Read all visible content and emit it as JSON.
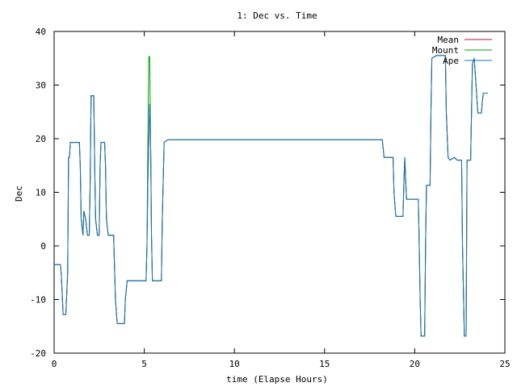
{
  "chart_data": {
    "type": "line",
    "title": "1: Dec vs. Time",
    "xlabel": "time (Elapse Hours)",
    "ylabel": "Dec",
    "xlim": [
      0,
      25
    ],
    "ylim": [
      -20,
      40
    ],
    "xticks": [
      0,
      5,
      10,
      15,
      20,
      25
    ],
    "yticks": [
      -20,
      -10,
      0,
      10,
      20,
      30,
      40
    ],
    "grid": false,
    "legend_position": "top-right",
    "series": [
      {
        "name": "Mean",
        "color": "#aa1144",
        "points": [
          [
            0.0,
            -3.5
          ],
          [
            0.35,
            -3.5
          ],
          [
            0.4,
            -5.5
          ],
          [
            0.5,
            -12.8
          ],
          [
            0.65,
            -12.8
          ],
          [
            0.75,
            -5
          ],
          [
            0.8,
            16.5
          ],
          [
            0.85,
            16.5
          ],
          [
            0.9,
            19.3
          ],
          [
            1.4,
            19.3
          ],
          [
            1.45,
            15
          ],
          [
            1.5,
            5
          ],
          [
            1.6,
            2
          ],
          [
            1.65,
            6.5
          ],
          [
            1.75,
            5
          ],
          [
            1.85,
            2
          ],
          [
            1.95,
            2
          ],
          [
            2.0,
            12
          ],
          [
            2.05,
            28
          ],
          [
            2.2,
            28
          ],
          [
            2.25,
            15
          ],
          [
            2.3,
            5
          ],
          [
            2.4,
            2
          ],
          [
            2.5,
            2
          ],
          [
            2.55,
            15
          ],
          [
            2.6,
            19.3
          ],
          [
            2.8,
            19.3
          ],
          [
            2.85,
            15
          ],
          [
            2.9,
            5
          ],
          [
            3.0,
            2
          ],
          [
            3.3,
            2
          ],
          [
            3.4,
            -10
          ],
          [
            3.5,
            -14.5
          ],
          [
            3.9,
            -14.5
          ],
          [
            3.95,
            -10
          ],
          [
            4.05,
            -6.5
          ],
          [
            5.0,
            -6.5
          ],
          [
            5.1,
            -6.5
          ],
          [
            5.15,
            0
          ],
          [
            5.2,
            12
          ],
          [
            5.3,
            26.5
          ],
          [
            5.35,
            20
          ],
          [
            5.4,
            2
          ],
          [
            5.45,
            -6.5
          ],
          [
            5.95,
            -6.5
          ],
          [
            6.0,
            5
          ],
          [
            6.1,
            19.3
          ],
          [
            6.3,
            19.8
          ],
          [
            18.2,
            19.8
          ],
          [
            18.3,
            16.5
          ],
          [
            18.8,
            16.5
          ],
          [
            18.85,
            10
          ],
          [
            18.95,
            5.5
          ],
          [
            19.35,
            5.5
          ],
          [
            19.4,
            12
          ],
          [
            19.45,
            16.5
          ],
          [
            19.5,
            12
          ],
          [
            19.55,
            8.7
          ],
          [
            20.2,
            8.7
          ],
          [
            20.25,
            0
          ],
          [
            20.3,
            -10
          ],
          [
            20.35,
            -16.8
          ],
          [
            20.55,
            -16.8
          ],
          [
            20.6,
            0
          ],
          [
            20.65,
            11.3
          ],
          [
            20.85,
            11.3
          ],
          [
            20.9,
            25
          ],
          [
            20.95,
            35
          ],
          [
            21.2,
            35.5
          ],
          [
            21.7,
            35.5
          ],
          [
            21.75,
            25
          ],
          [
            21.85,
            16.5
          ],
          [
            21.95,
            16
          ],
          [
            22.2,
            16.5
          ],
          [
            22.35,
            16
          ],
          [
            22.6,
            16
          ],
          [
            22.65,
            0
          ],
          [
            22.75,
            -16.8
          ],
          [
            22.85,
            -16.8
          ],
          [
            22.9,
            16
          ],
          [
            23.1,
            16
          ],
          [
            23.2,
            34
          ],
          [
            23.3,
            35
          ],
          [
            23.4,
            30
          ],
          [
            23.5,
            24.8
          ],
          [
            23.7,
            24.8
          ],
          [
            23.75,
            27
          ],
          [
            23.8,
            28.5
          ],
          [
            24.05,
            28.5
          ]
        ]
      },
      {
        "name": "Mount",
        "color": "#00a000",
        "points": [
          [
            0.0,
            -3.5
          ],
          [
            0.35,
            -3.5
          ],
          [
            0.4,
            -5.5
          ],
          [
            0.5,
            -12.8
          ],
          [
            0.65,
            -12.8
          ],
          [
            0.75,
            -5
          ],
          [
            0.8,
            16.5
          ],
          [
            0.85,
            16.5
          ],
          [
            0.9,
            19.3
          ],
          [
            1.4,
            19.3
          ],
          [
            1.45,
            15
          ],
          [
            1.5,
            5
          ],
          [
            1.6,
            2
          ],
          [
            1.65,
            6.5
          ],
          [
            1.75,
            5
          ],
          [
            1.85,
            2
          ],
          [
            1.95,
            2
          ],
          [
            2.0,
            12
          ],
          [
            2.05,
            28
          ],
          [
            2.2,
            28
          ],
          [
            2.25,
            15
          ],
          [
            2.3,
            5
          ],
          [
            2.4,
            2
          ],
          [
            2.5,
            2
          ],
          [
            2.55,
            15
          ],
          [
            2.6,
            19.3
          ],
          [
            2.8,
            19.3
          ],
          [
            2.85,
            15
          ],
          [
            2.9,
            5
          ],
          [
            3.0,
            2
          ],
          [
            3.3,
            2
          ],
          [
            3.4,
            -10
          ],
          [
            3.5,
            -14.5
          ],
          [
            3.9,
            -14.5
          ],
          [
            3.95,
            -10
          ],
          [
            4.05,
            -6.5
          ],
          [
            5.0,
            -6.5
          ],
          [
            5.1,
            -6.5
          ],
          [
            5.15,
            0
          ],
          [
            5.2,
            20
          ],
          [
            5.25,
            35.3
          ],
          [
            5.3,
            35.3
          ],
          [
            5.35,
            20
          ],
          [
            5.4,
            2
          ],
          [
            5.45,
            -6.5
          ],
          [
            5.95,
            -6.5
          ],
          [
            6.0,
            5
          ],
          [
            6.1,
            19.3
          ],
          [
            6.3,
            19.8
          ],
          [
            18.2,
            19.8
          ],
          [
            18.3,
            16.5
          ],
          [
            18.8,
            16.5
          ],
          [
            18.85,
            10
          ],
          [
            18.95,
            5.5
          ],
          [
            19.35,
            5.5
          ],
          [
            19.4,
            12
          ],
          [
            19.45,
            16.5
          ],
          [
            19.5,
            12
          ],
          [
            19.55,
            8.7
          ],
          [
            20.2,
            8.7
          ],
          [
            20.25,
            0
          ],
          [
            20.3,
            -10
          ],
          [
            20.35,
            -16.8
          ],
          [
            20.55,
            -16.8
          ],
          [
            20.6,
            0
          ],
          [
            20.65,
            11.3
          ],
          [
            20.85,
            11.3
          ],
          [
            20.9,
            25
          ],
          [
            20.95,
            35
          ],
          [
            21.2,
            35.5
          ],
          [
            21.7,
            35.5
          ],
          [
            21.75,
            25
          ],
          [
            21.85,
            16.5
          ],
          [
            21.95,
            16
          ],
          [
            22.2,
            16.5
          ],
          [
            22.35,
            16
          ],
          [
            22.6,
            16
          ],
          [
            22.65,
            0
          ],
          [
            22.75,
            -16.8
          ],
          [
            22.85,
            -16.8
          ],
          [
            22.9,
            16
          ],
          [
            23.1,
            16
          ],
          [
            23.2,
            34
          ],
          [
            23.3,
            35
          ],
          [
            23.4,
            30
          ],
          [
            23.5,
            24.8
          ],
          [
            23.7,
            24.8
          ],
          [
            23.75,
            27
          ],
          [
            23.8,
            28.5
          ],
          [
            24.05,
            28.5
          ]
        ]
      },
      {
        "name": "Ape",
        "color": "#1a6fc4",
        "points": [
          [
            0.0,
            -3.5
          ],
          [
            0.35,
            -3.5
          ],
          [
            0.4,
            -5.5
          ],
          [
            0.5,
            -12.8
          ],
          [
            0.65,
            -12.8
          ],
          [
            0.75,
            -5
          ],
          [
            0.8,
            16.5
          ],
          [
            0.85,
            16.5
          ],
          [
            0.9,
            19.3
          ],
          [
            1.4,
            19.3
          ],
          [
            1.45,
            15
          ],
          [
            1.5,
            5
          ],
          [
            1.6,
            2
          ],
          [
            1.65,
            6.5
          ],
          [
            1.75,
            5
          ],
          [
            1.85,
            2
          ],
          [
            1.95,
            2
          ],
          [
            2.0,
            12
          ],
          [
            2.05,
            28
          ],
          [
            2.2,
            28
          ],
          [
            2.25,
            15
          ],
          [
            2.3,
            5
          ],
          [
            2.4,
            2
          ],
          [
            2.5,
            2
          ],
          [
            2.55,
            15
          ],
          [
            2.6,
            19.3
          ],
          [
            2.8,
            19.3
          ],
          [
            2.85,
            15
          ],
          [
            2.9,
            5
          ],
          [
            3.0,
            2
          ],
          [
            3.3,
            2
          ],
          [
            3.4,
            -10
          ],
          [
            3.5,
            -14.5
          ],
          [
            3.9,
            -14.5
          ],
          [
            3.95,
            -10
          ],
          [
            4.05,
            -6.5
          ],
          [
            5.0,
            -6.5
          ],
          [
            5.1,
            -6.5
          ],
          [
            5.15,
            0
          ],
          [
            5.2,
            12
          ],
          [
            5.3,
            26.5
          ],
          [
            5.35,
            20
          ],
          [
            5.4,
            2
          ],
          [
            5.45,
            -6.5
          ],
          [
            5.95,
            -6.5
          ],
          [
            6.0,
            5
          ],
          [
            6.1,
            19.3
          ],
          [
            6.3,
            19.8
          ],
          [
            8.85,
            19.8
          ],
          [
            18.2,
            19.8
          ],
          [
            18.3,
            16.5
          ],
          [
            18.8,
            16.5
          ],
          [
            18.85,
            10
          ],
          [
            18.95,
            5.5
          ],
          [
            19.35,
            5.5
          ],
          [
            19.4,
            12
          ],
          [
            19.45,
            16.5
          ],
          [
            19.5,
            12
          ],
          [
            19.55,
            8.7
          ],
          [
            20.2,
            8.7
          ],
          [
            20.25,
            0
          ],
          [
            20.3,
            -10
          ],
          [
            20.35,
            -16.8
          ],
          [
            20.55,
            -16.8
          ],
          [
            20.6,
            0
          ],
          [
            20.65,
            11.3
          ],
          [
            20.85,
            11.3
          ],
          [
            20.9,
            25
          ],
          [
            20.95,
            35
          ],
          [
            21.2,
            35.5
          ],
          [
            21.7,
            35.5
          ],
          [
            21.75,
            25
          ],
          [
            21.85,
            16.5
          ],
          [
            21.95,
            16
          ],
          [
            22.2,
            16.5
          ],
          [
            22.35,
            16
          ],
          [
            22.6,
            16
          ],
          [
            22.65,
            0
          ],
          [
            22.75,
            -16.8
          ],
          [
            22.85,
            -16.8
          ],
          [
            22.9,
            16
          ],
          [
            23.1,
            16
          ],
          [
            23.2,
            34
          ],
          [
            23.3,
            35
          ],
          [
            23.4,
            30
          ],
          [
            23.5,
            24.8
          ],
          [
            23.7,
            24.8
          ],
          [
            23.75,
            27
          ],
          [
            23.8,
            28.5
          ],
          [
            24.05,
            28.5
          ]
        ]
      }
    ]
  }
}
